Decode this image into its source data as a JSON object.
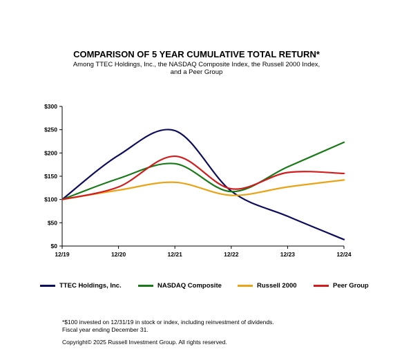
{
  "chart_data": {
    "type": "line",
    "title": "COMPARISON OF 5 YEAR CUMULATIVE TOTAL RETURN*",
    "subtitle_lines": [
      "Among TTEC Holdings, Inc., the NASDAQ Composite Index, the Russell 2000 Index,",
      "and a Peer Group"
    ],
    "categories": [
      "12/19",
      "12/20",
      "12/21",
      "12/22",
      "12/23",
      "12/24"
    ],
    "y_ticks": [
      "$0",
      "$50",
      "$100",
      "$150",
      "$200",
      "$250",
      "$300"
    ],
    "ylim": [
      0,
      300
    ],
    "grid": false,
    "legend_position": "bottom",
    "series": [
      {
        "name": "TTEC Holdings, Inc.",
        "color": "#0d0d5c",
        "values": [
          100,
          195,
          248,
          118,
          64,
          14
        ]
      },
      {
        "name": "NASDAQ Composite",
        "color": "#1a7a1a",
        "values": [
          100,
          145,
          177,
          117,
          170,
          223
        ]
      },
      {
        "name": "Russell 2000",
        "color": "#e8a317",
        "values": [
          100,
          120,
          137,
          109,
          127,
          142
        ]
      },
      {
        "name": "Peer Group",
        "color": "#d01c1c",
        "values": [
          100,
          127,
          193,
          123,
          158,
          156
        ]
      }
    ]
  },
  "footnote": {
    "lines": [
      "*$100 invested on 12/31/19 in stock or index, including reinvestment of dividends.",
      "Fiscal year ending December 31."
    ],
    "copyright": "Copyright© 2025 Russell Investment Group. All rights reserved."
  }
}
